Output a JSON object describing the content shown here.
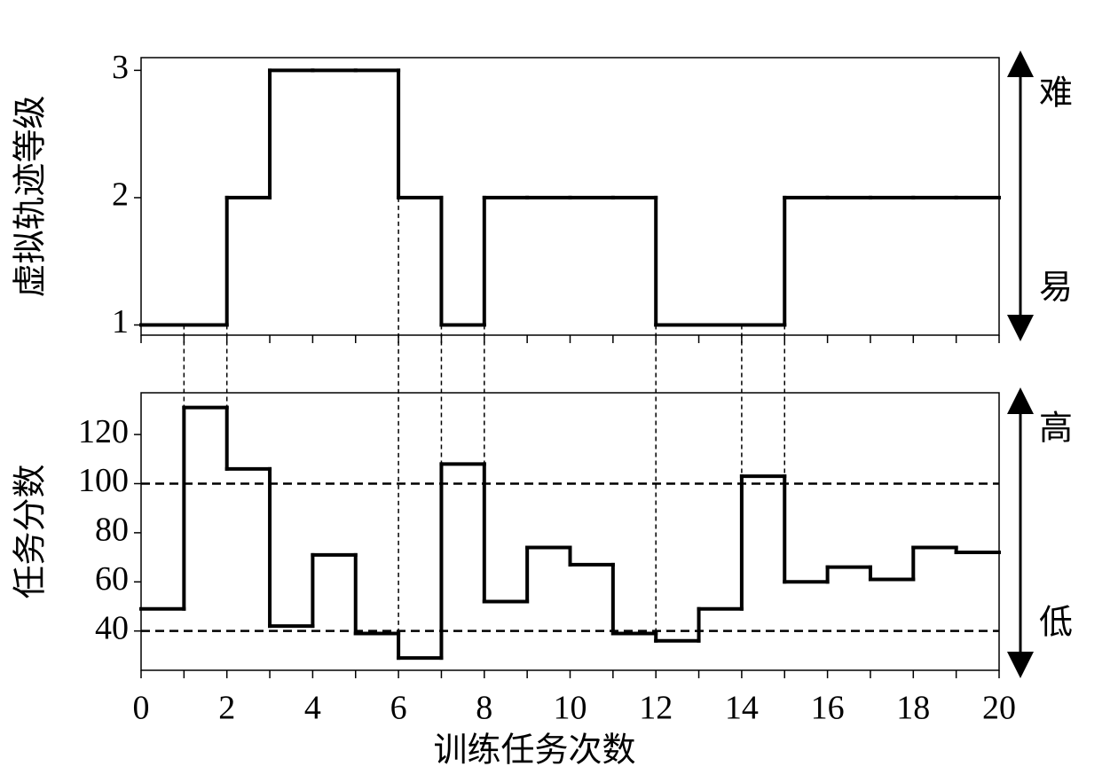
{
  "chart_data": [
    {
      "type": "step",
      "ylabel": "虚拟轨迹等级",
      "xlim": [
        0,
        20
      ],
      "ylim": [
        0.92,
        3.1
      ],
      "yticks": [
        1,
        2,
        3
      ],
      "x": [
        0,
        1,
        2,
        3,
        4,
        5,
        6,
        7,
        8,
        9,
        10,
        11,
        12,
        13,
        14,
        15,
        16,
        17,
        18,
        19
      ],
      "values": [
        1,
        1,
        2,
        3,
        3,
        3,
        2,
        1,
        2,
        2,
        2,
        2,
        1,
        1,
        1,
        2,
        2,
        2,
        2,
        2
      ],
      "color": "#000000",
      "annotations": [
        "难",
        "易"
      ]
    },
    {
      "type": "step",
      "ylabel": "任务分数",
      "xlabel": "训练任务次数",
      "xlim": [
        0,
        20
      ],
      "ylim": [
        24,
        137
      ],
      "yticks": [
        40,
        60,
        80,
        100,
        120
      ],
      "xticks": [
        0,
        2,
        4,
        6,
        8,
        10,
        12,
        14,
        16,
        18,
        20
      ],
      "xminor_ticks": [
        1,
        3,
        5,
        7,
        9,
        11,
        13,
        15,
        17,
        19
      ],
      "x": [
        0,
        1,
        2,
        3,
        4,
        5,
        6,
        7,
        8,
        9,
        10,
        11,
        12,
        13,
        14,
        15,
        16,
        17,
        18,
        19
      ],
      "values": [
        49,
        131,
        106,
        42,
        71,
        39,
        29,
        108,
        52,
        74,
        67,
        39,
        36,
        49,
        103,
        60,
        66,
        61,
        74,
        72
      ],
      "color": "#000000",
      "hlines": [
        100,
        40
      ],
      "vlines": [
        1,
        2,
        6,
        7,
        8,
        12,
        14,
        15
      ],
      "annotations": [
        "高",
        "低"
      ]
    }
  ]
}
